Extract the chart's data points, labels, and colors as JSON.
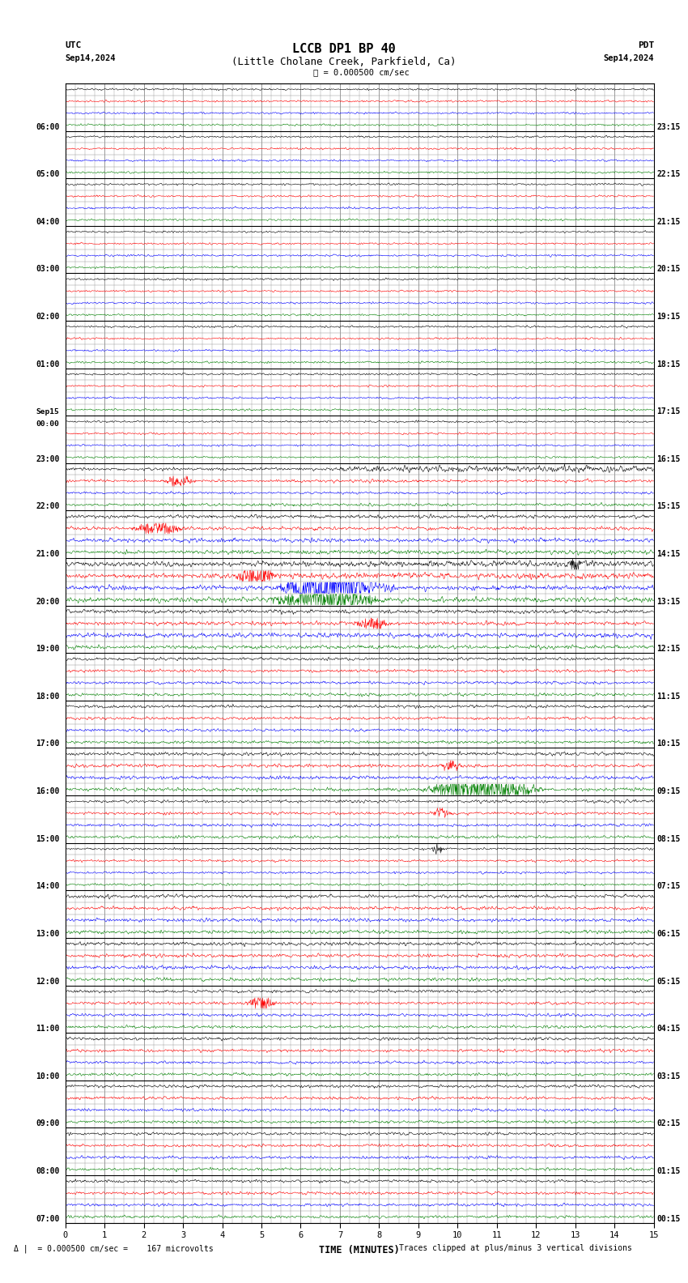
{
  "title_line1": "LCCB DP1 BP 40",
  "title_line2": "(Little Cholane Creek, Parkfield, Ca)",
  "scale_text": "= 0.000500 cm/sec",
  "footer_scale": "= 0.000500 cm/sec =    167 microvolts",
  "footer_clip": "Traces clipped at plus/minus 3 vertical divisions",
  "label_utc": "UTC",
  "label_pdt": "PDT",
  "label_date_left": "Sep14,2024",
  "label_date_right": "Sep14,2024",
  "xlabel": "TIME (MINUTES)",
  "xmin": 0,
  "xmax": 15,
  "xticks": [
    0,
    1,
    2,
    3,
    4,
    5,
    6,
    7,
    8,
    9,
    10,
    11,
    12,
    13,
    14,
    15
  ],
  "bg_color": "#ffffff",
  "grid_color": "#999999",
  "trace_colors": [
    "#000000",
    "#ff0000",
    "#0000ff",
    "#008000"
  ],
  "utc_labels": [
    "07:00",
    "08:00",
    "09:00",
    "10:00",
    "11:00",
    "12:00",
    "13:00",
    "14:00",
    "15:00",
    "16:00",
    "17:00",
    "18:00",
    "19:00",
    "20:00",
    "21:00",
    "22:00",
    "23:00",
    "Sep15\n00:00",
    "01:00",
    "02:00",
    "03:00",
    "04:00",
    "05:00",
    "06:00"
  ],
  "pdt_labels": [
    "00:15",
    "01:15",
    "02:15",
    "03:15",
    "04:15",
    "05:15",
    "06:15",
    "07:15",
    "08:15",
    "09:15",
    "10:15",
    "11:15",
    "12:15",
    "13:15",
    "14:15",
    "15:15",
    "16:15",
    "17:15",
    "18:15",
    "19:15",
    "20:15",
    "21:15",
    "22:15",
    "23:15"
  ]
}
